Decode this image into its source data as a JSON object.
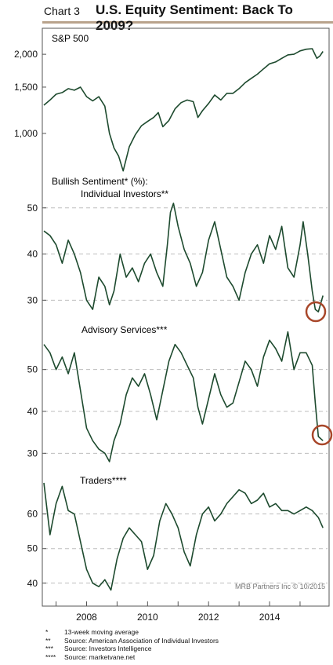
{
  "header": {
    "chart_number": "Chart 3",
    "title": "U.S. Equity Sentiment: Back To 2009?"
  },
  "credit": "MRB Partners Inc © 10/2015",
  "footnotes": [
    {
      "mark": "*",
      "text": "13-week moving average"
    },
    {
      "mark": "**",
      "text": "Source: American Association of Individual Investors"
    },
    {
      "mark": "***",
      "text": "Source: Investors Intelligence"
    },
    {
      "mark": "****",
      "text": "Source: marketvane.net"
    }
  ],
  "colors": {
    "line": "#1d4a2e",
    "grid": "#bdbdbd",
    "circle": "#a8472a",
    "header_rule": "#b9a38c"
  },
  "chart_data": [
    {
      "type": "line",
      "title": "S&P 500",
      "log_scale": true,
      "ylim": [
        680,
        2250
      ],
      "yticks": [
        1000,
        1500,
        2000
      ],
      "ytick_labels": [
        "1,000",
        "1,500",
        "2,000"
      ],
      "grid": false,
      "series": [
        {
          "x": [
            2006.6,
            2006.8,
            2007.0,
            2007.2,
            2007.4,
            2007.6,
            2007.8,
            2008.0,
            2008.2,
            2008.4,
            2008.6,
            2008.75,
            2008.9,
            2009.05,
            2009.2,
            2009.4,
            2009.6,
            2009.8,
            2010.0,
            2010.2,
            2010.35,
            2010.5,
            2010.7,
            2010.9,
            2011.1,
            2011.3,
            2011.5,
            2011.65,
            2011.8,
            2012.0,
            2012.2,
            2012.4,
            2012.6,
            2012.8,
            2013.0,
            2013.2,
            2013.4,
            2013.6,
            2013.8,
            2014.0,
            2014.2,
            2014.4,
            2014.6,
            2014.8,
            2015.0,
            2015.2,
            2015.4,
            2015.55,
            2015.65,
            2015.75
          ],
          "values": [
            1280,
            1340,
            1410,
            1430,
            1480,
            1460,
            1500,
            1380,
            1330,
            1380,
            1270,
            1000,
            880,
            820,
            720,
            890,
            990,
            1070,
            1110,
            1150,
            1200,
            1060,
            1120,
            1240,
            1310,
            1340,
            1320,
            1150,
            1220,
            1300,
            1400,
            1340,
            1420,
            1420,
            1480,
            1560,
            1620,
            1680,
            1760,
            1840,
            1870,
            1930,
            1990,
            2000,
            2060,
            2090,
            2100,
            1930,
            1970,
            2050
          ]
        }
      ]
    },
    {
      "type": "line",
      "title": "Bullish Sentiment* (%):",
      "subtitle": "Individual Investors**",
      "ylim": [
        27,
        52
      ],
      "yticks": [
        30,
        40,
        50
      ],
      "grid": true,
      "series": [
        {
          "x": [
            2006.6,
            2006.8,
            2007.0,
            2007.2,
            2007.4,
            2007.6,
            2007.8,
            2008.0,
            2008.2,
            2008.4,
            2008.6,
            2008.75,
            2008.9,
            2009.1,
            2009.3,
            2009.5,
            2009.7,
            2009.9,
            2010.1,
            2010.3,
            2010.5,
            2010.65,
            2010.75,
            2010.85,
            2011.0,
            2011.2,
            2011.4,
            2011.6,
            2011.8,
            2012.0,
            2012.2,
            2012.4,
            2012.6,
            2012.8,
            2013.0,
            2013.2,
            2013.4,
            2013.6,
            2013.8,
            2014.0,
            2014.2,
            2014.4,
            2014.6,
            2014.8,
            2015.0,
            2015.1,
            2015.25,
            2015.4,
            2015.5,
            2015.6,
            2015.75
          ],
          "values": [
            45,
            44,
            42,
            38,
            43,
            40,
            36,
            30,
            28,
            35,
            33,
            29,
            32,
            40,
            35,
            37,
            34,
            38,
            40,
            36,
            33,
            42,
            49,
            51,
            46,
            41,
            38,
            33,
            36,
            43,
            47,
            41,
            35,
            33,
            30,
            36,
            40,
            42,
            38,
            44,
            41,
            46,
            37,
            35,
            42,
            47,
            40,
            32,
            28,
            27.5,
            31
          ]
        }
      ]
    },
    {
      "type": "line",
      "title": "Advisory Services***",
      "ylim": [
        28,
        58
      ],
      "yticks": [
        30,
        40,
        50
      ],
      "grid": true,
      "series": [
        {
          "x": [
            2006.6,
            2006.8,
            2007.0,
            2007.2,
            2007.4,
            2007.6,
            2007.8,
            2008.0,
            2008.2,
            2008.4,
            2008.6,
            2008.75,
            2008.9,
            2009.1,
            2009.3,
            2009.5,
            2009.7,
            2009.9,
            2010.1,
            2010.3,
            2010.5,
            2010.7,
            2010.9,
            2011.1,
            2011.3,
            2011.5,
            2011.65,
            2011.8,
            2012.0,
            2012.2,
            2012.4,
            2012.6,
            2012.8,
            2013.0,
            2013.2,
            2013.4,
            2013.6,
            2013.8,
            2014.0,
            2014.2,
            2014.4,
            2014.6,
            2014.8,
            2015.0,
            2015.2,
            2015.4,
            2015.5,
            2015.6,
            2015.75
          ],
          "values": [
            56,
            54,
            50,
            53,
            49,
            54,
            45,
            36,
            33,
            31,
            30,
            28,
            33,
            37,
            44,
            48,
            46,
            49,
            44,
            38,
            45,
            52,
            56,
            54,
            51,
            48,
            41,
            37,
            43,
            49,
            44,
            41,
            42,
            47,
            52,
            50,
            46,
            53,
            57,
            55,
            52,
            59,
            50,
            54,
            54,
            51,
            42,
            34,
            33
          ]
        }
      ]
    },
    {
      "type": "line",
      "title": "Traders****",
      "ylim": [
        37,
        69
      ],
      "yticks": [
        40,
        50,
        60
      ],
      "xticks": [
        2008,
        2010,
        2012,
        2014
      ],
      "xlim": [
        2006.6,
        2015.9
      ],
      "grid": true,
      "series": [
        {
          "x": [
            2006.6,
            2006.8,
            2007.0,
            2007.2,
            2007.4,
            2007.6,
            2007.8,
            2008.0,
            2008.2,
            2008.4,
            2008.6,
            2008.8,
            2009.0,
            2009.2,
            2009.4,
            2009.6,
            2009.8,
            2010.0,
            2010.2,
            2010.4,
            2010.6,
            2010.8,
            2011.0,
            2011.2,
            2011.4,
            2011.6,
            2011.8,
            2012.0,
            2012.2,
            2012.4,
            2012.6,
            2012.8,
            2013.0,
            2013.2,
            2013.4,
            2013.6,
            2013.8,
            2014.0,
            2014.2,
            2014.4,
            2014.6,
            2014.8,
            2015.0,
            2015.2,
            2015.4,
            2015.6,
            2015.75
          ],
          "values": [
            69,
            54,
            63,
            68,
            61,
            60,
            52,
            44,
            40,
            39,
            41,
            38,
            47,
            53,
            56,
            54,
            52,
            44,
            48,
            58,
            63,
            60,
            56,
            49,
            45,
            54,
            60,
            62,
            58,
            60,
            63,
            65,
            67,
            66,
            63,
            64,
            66,
            62,
            63,
            61,
            61,
            60,
            61,
            62,
            61,
            59,
            56
          ]
        }
      ]
    }
  ]
}
